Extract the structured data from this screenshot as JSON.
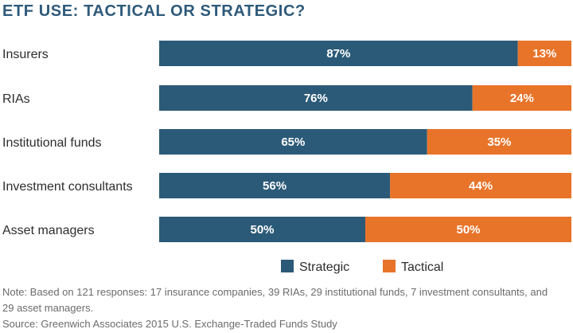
{
  "chart_data": {
    "type": "bar",
    "orientation": "horizontal",
    "stacked": true,
    "title": "ETF USE: TACTICAL OR STRATEGIC?",
    "categories": [
      "Insurers",
      "RIAs",
      "Institutional funds",
      "Investment consultants",
      "Asset managers"
    ],
    "series": [
      {
        "name": "Strategic",
        "values": [
          87,
          76,
          65,
          56,
          50
        ],
        "color": "#2b5a78"
      },
      {
        "name": "Tactical",
        "values": [
          13,
          24,
          35,
          44,
          50
        ],
        "color": "#e8742a"
      }
    ],
    "value_suffix": "%",
    "xlim": [
      0,
      100
    ],
    "grid": false,
    "legend_position": "bottom-center"
  },
  "note": "Note: Based on 121 responses: 17 insurance companies, 39 RIAs, 29 institutional funds, 7 investment consultants, and 29 asset managers.",
  "source": "Source: Greenwich Associates 2015 U.S. Exchange-Traded Funds Study"
}
